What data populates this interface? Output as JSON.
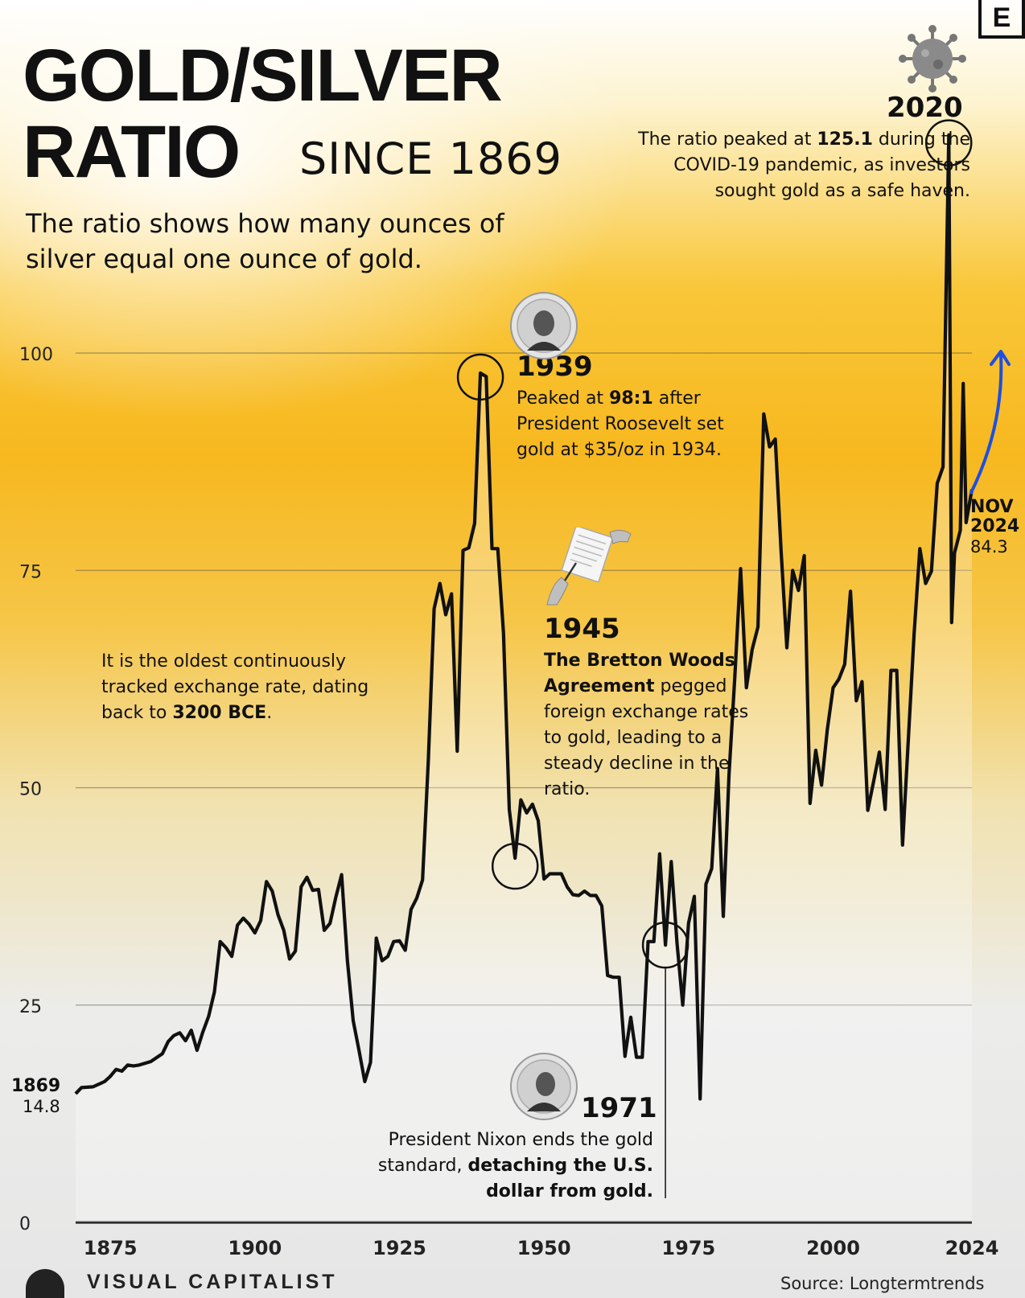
{
  "brand_letter": "E",
  "title_line1": "GOLD/SILVER",
  "title_line2": "RATIO",
  "title_since": "SINCE 1869",
  "subtitle": "The ratio shows how many ounces of silver equal one ounce of gold.",
  "side_note_html": "It is the oldest continuously tracked exchange rate, dating back to <b>3200 BCE</b>.",
  "annotations": {
    "a2020": {
      "year": "2020",
      "text_html": "The ratio peaked at <b>125.1</b> during the COVID-19 pandemic, as investors sought gold as a safe haven."
    },
    "a1939": {
      "year": "1939",
      "text_html": "Peaked at <b>98:1</b> after President Roosevelt set gold at $35/oz in 1934."
    },
    "a1945": {
      "year": "1945",
      "text_html": "<b>The Bretton Woods Agreement</b> pegged foreign exchange rates to gold, leading to a steady decline in the ratio."
    },
    "a1971": {
      "year": "1971",
      "text_html": "President Nixon ends the gold standard, <b>detaching the U.S. dollar from gold.</b>"
    }
  },
  "start_label": {
    "year": "1869",
    "value": "14.8"
  },
  "end_label": {
    "line1": "NOV",
    "line2": "2024",
    "value": "84.3"
  },
  "footer": {
    "brand": "VISUAL CAPITALIST",
    "source": "Source: Longtermtrends"
  },
  "colors": {
    "line": "#111111",
    "arrow": "#1f4fe0",
    "fill": "rgba(255,255,255,0.28)"
  },
  "chart_data": {
    "type": "line",
    "title": "GOLD/SILVER RATIO SINCE 1869",
    "xlabel": "",
    "ylabel": "",
    "xlim": [
      1869,
      2024
    ],
    "ylim": [
      0,
      100
    ],
    "yticks": [
      0,
      25,
      50,
      75,
      100
    ],
    "xticks": [
      1875,
      1900,
      1925,
      1950,
      1975,
      2000,
      2024
    ],
    "grid": true,
    "series": [
      {
        "x": [
          1869,
          1870,
          1872,
          1874,
          1875,
          1876,
          1877,
          1878,
          1879,
          1880,
          1882,
          1884,
          1885,
          1886,
          1887,
          1888,
          1889,
          1890,
          1891,
          1892,
          1893,
          1894,
          1895,
          1896,
          1897,
          1898,
          1899,
          1900,
          1901,
          1902,
          1903,
          1904,
          1905,
          1906,
          1907,
          1908,
          1909,
          1910,
          1911,
          1912,
          1913,
          1914,
          1915,
          1916,
          1917,
          1918,
          1919,
          1920,
          1921,
          1922,
          1923,
          1924,
          1925,
          1926,
          1927,
          1928,
          1929,
          1930,
          1931,
          1932,
          1933,
          1934,
          1935,
          1936,
          1937,
          1938,
          1939,
          1940,
          1941,
          1942,
          1943,
          1944,
          1945,
          1946,
          1947,
          1948,
          1949,
          1950,
          1951,
          1952,
          1953,
          1954,
          1955,
          1956,
          1957,
          1958,
          1959,
          1960,
          1961,
          1962,
          1963,
          1964,
          1965,
          1966,
          1967,
          1968,
          1969,
          1970,
          1971,
          1972,
          1973,
          1974,
          1975,
          1976,
          1977,
          1978,
          1979,
          1980,
          1981,
          1982,
          1983,
          1984,
          1985,
          1986,
          1987,
          1988,
          1989,
          1990,
          1991,
          1992,
          1993,
          1994,
          1995,
          1996,
          1997,
          1998,
          1999,
          2000,
          2001,
          2002,
          2003,
          2004,
          2005,
          2006,
          2007,
          2008,
          2009,
          2010,
          2011,
          2012,
          2013,
          2014,
          2015,
          2016,
          2017,
          2018,
          2019,
          2020,
          2020.5,
          2021,
          2022,
          2022.5,
          2023,
          2024
        ],
        "y": [
          14.8,
          15.5,
          15.6,
          16.2,
          16.8,
          17.6,
          17.4,
          18.1,
          18.0,
          18.1,
          18.5,
          19.4,
          20.8,
          21.5,
          21.8,
          20.9,
          22.1,
          19.8,
          21.9,
          23.7,
          26.5,
          32.3,
          31.6,
          30.6,
          34.2,
          35.0,
          34.3,
          33.3,
          34.7,
          39.2,
          38.1,
          35.4,
          33.6,
          30.3,
          31.2,
          38.6,
          39.7,
          38.2,
          38.3,
          33.6,
          34.4,
          37.4,
          40.0,
          30.1,
          23.2,
          19.8,
          16.2,
          18.4,
          32.7,
          30.1,
          30.6,
          32.3,
          32.4,
          31.3,
          36.0,
          37.3,
          39.4,
          53.2,
          70.6,
          73.5,
          69.9,
          72.3,
          54.2,
          77.3,
          77.6,
          80.4,
          97.7,
          97.3,
          77.5,
          77.5,
          67.8,
          47.5,
          41.9,
          48.6,
          47.1,
          48.1,
          46.2,
          39.5,
          40.1,
          40.1,
          40.1,
          38.6,
          37.7,
          37.6,
          38.1,
          37.6,
          37.6,
          36.4,
          28.4,
          28.2,
          28.2,
          19.1,
          23.6,
          19.0,
          19.0,
          32.3,
          32.3,
          42.4,
          31.9,
          41.5,
          32.1,
          25.0,
          34.4,
          37.5,
          14.2,
          38.9,
          40.7,
          52.2,
          35.2,
          51.5,
          62.7,
          75.2,
          61.5,
          65.9,
          68.5,
          93.0,
          89.2,
          90.1,
          77.3,
          66.1,
          75.0,
          72.7,
          76.7,
          48.2,
          54.3,
          50.3,
          56.7,
          61.5,
          62.5,
          64.2,
          72.6,
          60.0,
          62.2,
          47.4,
          50.7,
          54.1,
          47.5,
          63.5,
          63.5,
          43.4,
          55.4,
          67.6,
          77.5,
          73.5,
          74.9,
          85.0,
          86.9,
          125.1,
          69.0,
          77.0,
          79.6,
          96.5,
          80.5,
          84.3
        ]
      }
    ]
  }
}
